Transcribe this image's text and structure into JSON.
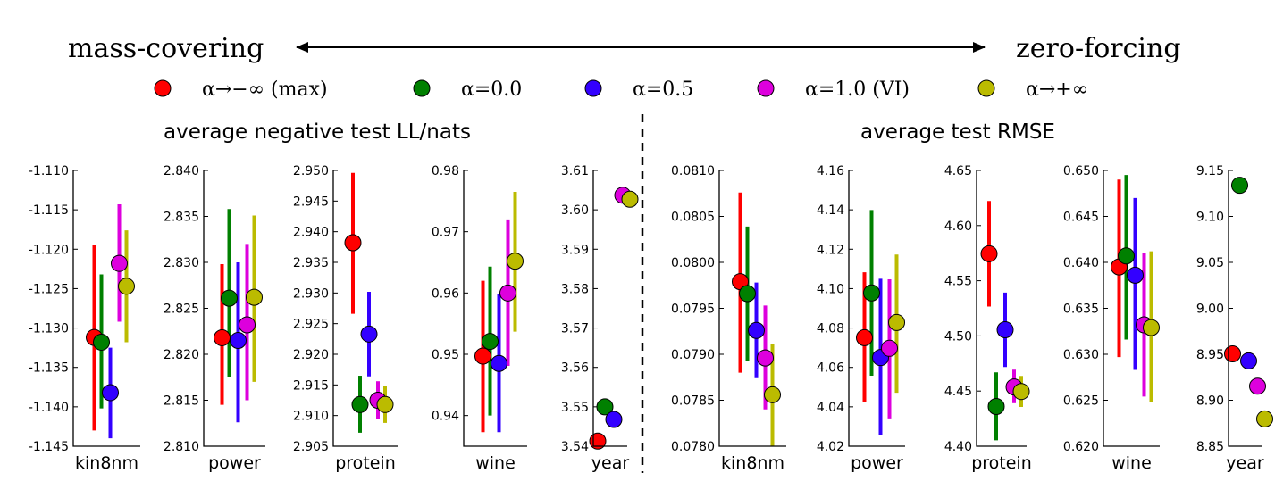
{
  "header": {
    "left_label": "mass-covering",
    "right_label": "zero-forcing"
  },
  "legend": [
    {
      "name": "α→−∞ (max)",
      "color": "#ff0000"
    },
    {
      "name": "α=0.0",
      "color": "#008000"
    },
    {
      "name": "α=0.5",
      "color": "#3300ff"
    },
    {
      "name": "α=1.0 (VI)",
      "color": "#dd00dd"
    },
    {
      "name": "α→+∞",
      "color": "#bbbb00"
    }
  ],
  "groups": [
    {
      "title": "average negative test LL/nats"
    },
    {
      "title": "average test RMSE"
    }
  ],
  "chart_data": [
    {
      "type": "scatter",
      "group": 0,
      "xlabel": "kin8nm",
      "ylim": [
        -1.145,
        -1.11
      ],
      "ticks": [
        "-1.110",
        "-1.115",
        "-1.120",
        "-1.125",
        "-1.130",
        "-1.135",
        "-1.140",
        "-1.145"
      ],
      "points": [
        {
          "y": -1.1312,
          "lo": -1.143,
          "hi": -1.1195
        },
        {
          "y": -1.1318,
          "lo": -1.1402,
          "hi": -1.1232
        },
        {
          "y": -1.1382,
          "lo": -1.144,
          "hi": -1.1325
        },
        {
          "y": -1.1218,
          "lo": -1.1292,
          "hi": -1.1143
        },
        {
          "y": -1.1247,
          "lo": -1.1318,
          "hi": -1.1176
        }
      ]
    },
    {
      "type": "scatter",
      "group": 0,
      "xlabel": "power",
      "ylim": [
        2.81,
        2.84
      ],
      "ticks": [
        "2.840",
        "2.835",
        "2.830",
        "2.825",
        "2.820",
        "2.815",
        "2.810"
      ],
      "points": [
        {
          "y": 2.8218,
          "lo": 2.8145,
          "hi": 2.8298
        },
        {
          "y": 2.8261,
          "lo": 2.8175,
          "hi": 2.8358
        },
        {
          "y": 2.8215,
          "lo": 2.8126,
          "hi": 2.83
        },
        {
          "y": 2.8232,
          "lo": 2.815,
          "hi": 2.832
        },
        {
          "y": 2.8262,
          "lo": 2.817,
          "hi": 2.8351
        }
      ]
    },
    {
      "type": "scatter",
      "group": 0,
      "xlabel": "protein",
      "ylim": [
        2.905,
        2.95
      ],
      "ticks": [
        "2.950",
        "2.945",
        "2.940",
        "2.935",
        "2.930",
        "2.925",
        "2.920",
        "2.915",
        "2.910",
        "2.905"
      ],
      "points": [
        {
          "y": 2.9382,
          "lo": 2.9266,
          "hi": 2.9496
        },
        {
          "y": 2.9118,
          "lo": 2.9072,
          "hi": 2.9165
        },
        {
          "y": 2.9233,
          "lo": 2.9164,
          "hi": 2.9302
        },
        {
          "y": 2.9125,
          "lo": 2.9095,
          "hi": 2.9156
        },
        {
          "y": 2.9118,
          "lo": 2.9088,
          "hi": 2.9148
        }
      ]
    },
    {
      "type": "scatter",
      "group": 0,
      "xlabel": "wine",
      "ylim": [
        0.935,
        0.98
      ],
      "ticks": [
        "0.98",
        "0.97",
        "0.96",
        "0.95",
        "0.94"
      ],
      "points": [
        {
          "y": 0.9497,
          "lo": 0.9373,
          "hi": 0.962
        },
        {
          "y": 0.9521,
          "lo": 0.94,
          "hi": 0.9643
        },
        {
          "y": 0.9485,
          "lo": 0.9373,
          "hi": 0.9598
        },
        {
          "y": 0.96,
          "lo": 0.9481,
          "hi": 0.972
        },
        {
          "y": 0.9652,
          "lo": 0.9537,
          "hi": 0.9765
        }
      ]
    },
    {
      "type": "scatter",
      "group": 0,
      "xlabel": "year",
      "ylim": [
        3.54,
        3.61
      ],
      "ticks": [
        "3.61",
        "3.60",
        "3.59",
        "3.58",
        "3.57",
        "3.56",
        "3.55",
        "3.54"
      ],
      "points": [
        {
          "y": 3.5413
        },
        {
          "y": 3.55
        },
        {
          "y": 3.5468
        },
        {
          "y": 3.6037
        },
        {
          "y": 3.6027
        }
      ]
    },
    {
      "type": "scatter",
      "group": 1,
      "xlabel": "kin8nm",
      "ylim": [
        0.078,
        0.081
      ],
      "ticks": [
        "0.0810",
        "0.0805",
        "0.0800",
        "0.0795",
        "0.0790",
        "0.0785",
        "0.0780"
      ],
      "points": [
        {
          "y": 0.07979,
          "lo": 0.0788,
          "hi": 0.08076
        },
        {
          "y": 0.07966,
          "lo": 0.07893,
          "hi": 0.08039
        },
        {
          "y": 0.07926,
          "lo": 0.07874,
          "hi": 0.07978
        },
        {
          "y": 0.07896,
          "lo": 0.0784,
          "hi": 0.07953
        },
        {
          "y": 0.07856,
          "lo": 0.078,
          "hi": 0.07911
        }
      ]
    },
    {
      "type": "scatter",
      "group": 1,
      "xlabel": "power",
      "ylim": [
        4.02,
        4.16
      ],
      "ticks": [
        "4.16",
        "4.14",
        "4.12",
        "4.10",
        "4.08",
        "4.06",
        "4.04",
        "4.02"
      ],
      "points": [
        {
          "y": 4.0751,
          "lo": 4.0422,
          "hi": 4.1083
        },
        {
          "y": 4.0978,
          "lo": 4.0558,
          "hi": 4.1399
        },
        {
          "y": 4.065,
          "lo": 4.0259,
          "hi": 4.105
        },
        {
          "y": 4.0697,
          "lo": 4.0341,
          "hi": 4.1047
        },
        {
          "y": 4.0828,
          "lo": 4.0471,
          "hi": 4.1173
        }
      ]
    },
    {
      "type": "scatter",
      "group": 1,
      "xlabel": "protein",
      "ylim": [
        4.4,
        4.65
      ],
      "ticks": [
        "4.65",
        "4.60",
        "4.55",
        "4.50",
        "4.45",
        "4.40"
      ],
      "points": [
        {
          "y": 4.5745,
          "lo": 4.5266,
          "hi": 4.6223
        },
        {
          "y": 4.436,
          "lo": 4.4054,
          "hi": 4.467
        },
        {
          "y": 4.5056,
          "lo": 4.4718,
          "hi": 4.5393
        },
        {
          "y": 4.4537,
          "lo": 4.439,
          "hi": 4.4694
        },
        {
          "y": 4.4496,
          "lo": 4.4356,
          "hi": 4.4637
        }
      ]
    },
    {
      "type": "scatter",
      "group": 1,
      "xlabel": "wine",
      "ylim": [
        0.62,
        0.65
      ],
      "ticks": [
        "0.650",
        "0.645",
        "0.640",
        "0.635",
        "0.630",
        "0.625",
        "0.620"
      ],
      "points": [
        {
          "y": 0.6395,
          "lo": 0.6297,
          "hi": 0.649
        },
        {
          "y": 0.6407,
          "lo": 0.6316,
          "hi": 0.6495
        },
        {
          "y": 0.6386,
          "lo": 0.6283,
          "hi": 0.647
        },
        {
          "y": 0.6332,
          "lo": 0.6254,
          "hi": 0.641
        },
        {
          "y": 0.6329,
          "lo": 0.6248,
          "hi": 0.6412
        }
      ]
    },
    {
      "type": "scatter",
      "group": 1,
      "xlabel": "year",
      "ylim": [
        8.85,
        9.15
      ],
      "ticks": [
        "9.15",
        "9.10",
        "9.05",
        "9.00",
        "8.95",
        "8.90",
        "8.85"
      ],
      "points": [
        {
          "y": 8.9505
        },
        {
          "y": 9.1338
        },
        {
          "y": 8.9428
        },
        {
          "y": 8.9153
        },
        {
          "y": 8.8797
        }
      ]
    }
  ]
}
